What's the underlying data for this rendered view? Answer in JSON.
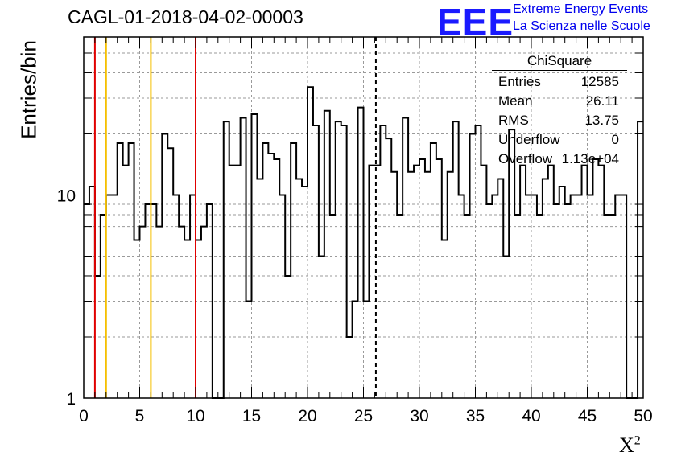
{
  "header": {
    "title": "CAGL-01-2018-04-02-00003",
    "logo_text": "EEE",
    "brand_line1": "Extreme Energy Events",
    "brand_line2": "La Scienza nelle Scuole"
  },
  "stats_box": {
    "title": "ChiSquare",
    "rows": [
      {
        "label": "Entries",
        "value": "12585"
      },
      {
        "label": "Mean",
        "value": "26.11"
      },
      {
        "label": "RMS",
        "value": "13.75"
      },
      {
        "label": "Underflow",
        "value": "0"
      },
      {
        "label": "Overflow",
        "value": "1.13e+04"
      }
    ]
  },
  "chart_data": {
    "type": "histogram",
    "title": "CAGL-01-2018-04-02-00003",
    "xlabel": "X",
    "xlabel_superscript": "2",
    "ylabel": "Entries/bin",
    "xlim": [
      0,
      50
    ],
    "ylim": [
      1,
      60
    ],
    "log_y": true,
    "grid": true,
    "x_ticks": [
      0,
      5,
      10,
      15,
      20,
      25,
      30,
      35,
      40,
      45,
      50
    ],
    "y_ticks": [
      1,
      10
    ],
    "bin_width": 0.5,
    "values": [
      9,
      11,
      4,
      8,
      10,
      10,
      18,
      14,
      18,
      6,
      7,
      9,
      9,
      7,
      20,
      17,
      10,
      7,
      6,
      10,
      6,
      7,
      9,
      1,
      1,
      23,
      14,
      14,
      24,
      3,
      25,
      12,
      18,
      16,
      15,
      10,
      4,
      18,
      12,
      11,
      34,
      22,
      5,
      26,
      8,
      23,
      22,
      2,
      3,
      27,
      3,
      14,
      14,
      22,
      19,
      13,
      8,
      24,
      13,
      14,
      15,
      13,
      18,
      15,
      6,
      13,
      23,
      10,
      8,
      20,
      22,
      14,
      9,
      10,
      12,
      5,
      21,
      8,
      14,
      10,
      10,
      8,
      12,
      14,
      9,
      11,
      9,
      10,
      10,
      14,
      10,
      15,
      14,
      8,
      8,
      10,
      10,
      1,
      1,
      23
    ],
    "markers": [
      {
        "x": 1,
        "color": "#e00000",
        "style": "solid"
      },
      {
        "x": 2,
        "color": "#f5c000",
        "style": "solid"
      },
      {
        "x": 6,
        "color": "#f5c000",
        "style": "solid"
      },
      {
        "x": 10,
        "color": "#e00000",
        "style": "solid"
      },
      {
        "x": 26.11,
        "color": "#000000",
        "style": "dashed"
      }
    ]
  }
}
